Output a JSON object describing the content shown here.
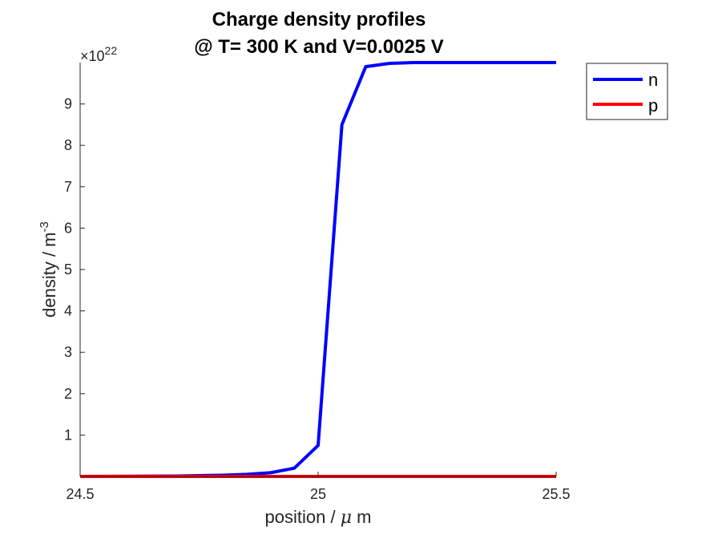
{
  "chart_data": {
    "type": "line",
    "title": [
      "Charge density profiles",
      "@ T= 300 K and V=0.0025 V"
    ],
    "xlabel": {
      "base": "position / ",
      "symbol": "μ",
      "rest": " m"
    },
    "ylabel": {
      "base": "density / m",
      "sup": "-3"
    },
    "y_exponent": {
      "prefix": "×10",
      "power": "22"
    },
    "xlim": [
      24.5,
      25.5
    ],
    "ylim": [
      0,
      10
    ],
    "x_ticks": [
      24.5,
      25,
      25.5
    ],
    "x_tick_labels": [
      "24.5",
      "25",
      "25.5"
    ],
    "y_ticks": [
      1,
      2,
      3,
      4,
      5,
      6,
      7,
      8,
      9
    ],
    "y_tick_labels": [
      "1",
      "2",
      "3",
      "4",
      "5",
      "6",
      "7",
      "8",
      "9"
    ],
    "grid": false,
    "legend_position": "top-right-outside",
    "series": [
      {
        "name": "n",
        "color": "#0000ff",
        "x": [
          24.5,
          24.6,
          24.7,
          24.8,
          24.85,
          24.9,
          24.95,
          25.0,
          25.05,
          25.1,
          25.15,
          25.2,
          25.3,
          25.4,
          25.5
        ],
        "y": [
          0.0,
          0.005,
          0.01,
          0.03,
          0.05,
          0.09,
          0.2,
          0.75,
          8.5,
          9.9,
          9.98,
          10.0,
          10.0,
          10.0,
          10.0
        ]
      },
      {
        "name": "p",
        "color": "#ff0000",
        "x": [
          24.5,
          25.5
        ],
        "y": [
          0.0,
          0.0
        ]
      }
    ]
  }
}
